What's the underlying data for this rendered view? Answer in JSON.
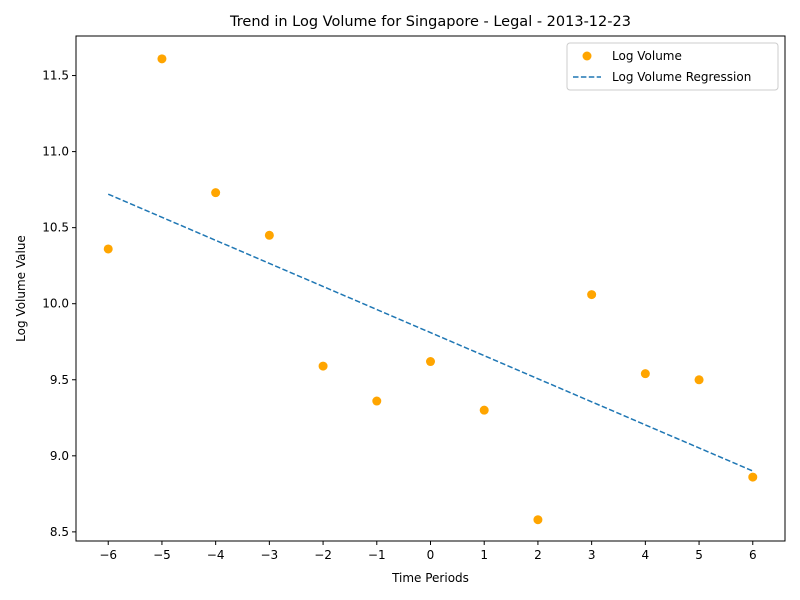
{
  "chart_data": {
    "type": "scatter",
    "title": "Trend in Log Volume for Singapore - Legal - 2013-12-23",
    "xlabel": "Time Periods",
    "ylabel": "Log Volume Value",
    "xlim": [
      -6.6,
      6.6
    ],
    "ylim": [
      8.44,
      11.76
    ],
    "x_ticks": [
      -6,
      -5,
      -4,
      -3,
      -2,
      -1,
      0,
      1,
      2,
      3,
      4,
      5,
      6
    ],
    "x_tick_labels": [
      "−6",
      "−5",
      "−4",
      "−3",
      "−2",
      "−1",
      "0",
      "1",
      "2",
      "3",
      "4",
      "5",
      "6"
    ],
    "y_ticks": [
      8.5,
      9.0,
      9.5,
      10.0,
      10.5,
      11.0,
      11.5
    ],
    "y_tick_labels": [
      "8.5",
      "9.0",
      "9.5",
      "10.0",
      "10.5",
      "11.0",
      "11.5"
    ],
    "grid": false,
    "legend_position": "top-right",
    "series": [
      {
        "name": "Log Volume",
        "kind": "scatter",
        "color": "#ffa500",
        "x": [
          -6,
          -5,
          -4,
          -3,
          -2,
          -1,
          0,
          1,
          2,
          3,
          4,
          5,
          6
        ],
        "y": [
          10.36,
          11.61,
          10.73,
          10.45,
          9.59,
          9.36,
          9.62,
          9.3,
          8.58,
          10.06,
          9.54,
          9.5,
          8.86
        ]
      },
      {
        "name": "Log Volume Regression",
        "kind": "line",
        "style": "dashed",
        "color": "#1f77b4",
        "x": [
          -6,
          6
        ],
        "y": [
          10.72,
          8.9
        ]
      }
    ]
  }
}
